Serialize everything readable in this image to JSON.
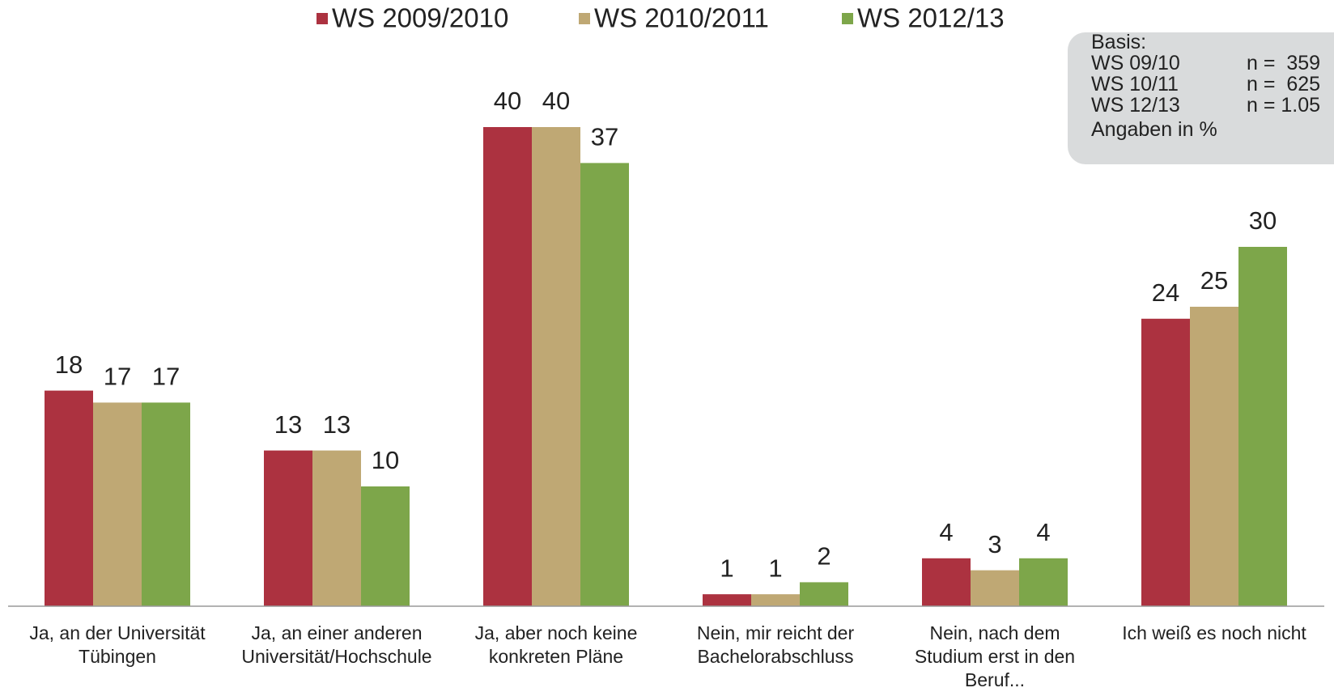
{
  "chart_data": {
    "type": "bar",
    "categories": [
      "Ja, an der Universität\nTübingen",
      "Ja, an einer anderen\nUniversität/Hochschule",
      "Ja, aber noch keine\nkonkreten Pläne",
      "Nein, mir reicht der\nBachelorabschluss",
      "Nein, nach dem\nStudium erst in den\nBeruf...",
      "Ich weiß es noch nicht"
    ],
    "series": [
      {
        "name": "WS 2009/2010",
        "color": "#ac3240",
        "values": [
          18,
          13,
          40,
          1,
          4,
          24
        ]
      },
      {
        "name": "WS 2010/2011",
        "color": "#bfa874",
        "values": [
          17,
          13,
          40,
          1,
          3,
          25
        ]
      },
      {
        "name": "WS 2012/13",
        "color": "#7da64a",
        "values": [
          17,
          10,
          37,
          2,
          4,
          30
        ]
      }
    ],
    "legend": "top"
  },
  "basis": {
    "title": "Basis:",
    "rows": [
      [
        "WS 09/10",
        "n =  359"
      ],
      [
        "WS 10/11",
        "n =  625"
      ],
      [
        "WS 12/13",
        "n = 1.05"
      ]
    ],
    "note": "Angaben in %"
  }
}
